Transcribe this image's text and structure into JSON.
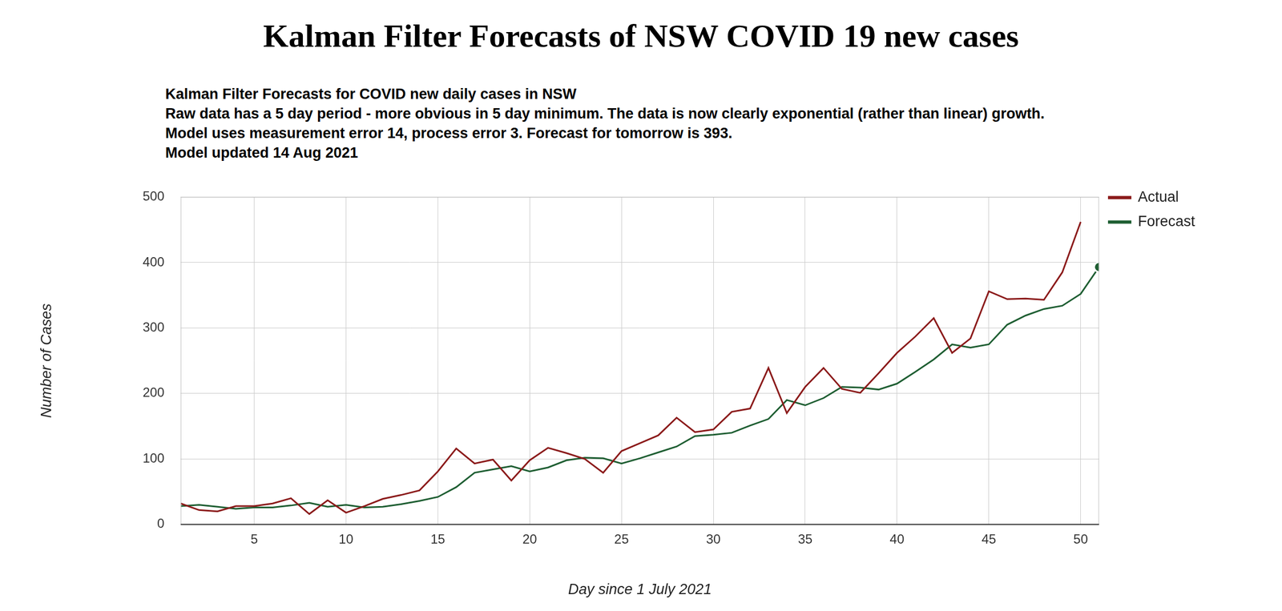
{
  "chart_data": {
    "type": "line",
    "title": "Kalman Filter Forecasts of NSW COVID 19 new cases",
    "subtitle": [
      "Kalman Filter Forecasts for COVID new daily cases in NSW",
      "Raw data has a 5 day period - more obvious in 5 day minimum. The data is now clearly exponential (rather than linear) growth.",
      "Model uses measurement error 14, process error 3. Forecast for tomorrow is 393.",
      "Model updated 14 Aug 2021"
    ],
    "x_label": "Day since 1 July 2021",
    "y_label": "Number of Cases",
    "x": [
      1,
      2,
      3,
      4,
      5,
      6,
      7,
      8,
      9,
      10,
      11,
      12,
      13,
      14,
      15,
      16,
      17,
      18,
      19,
      20,
      21,
      22,
      23,
      24,
      25,
      26,
      27,
      28,
      29,
      30,
      31,
      32,
      33,
      34,
      35,
      36,
      37,
      38,
      39,
      40,
      41,
      42,
      43,
      44,
      45,
      46,
      47,
      48,
      49,
      50,
      51
    ],
    "series": [
      {
        "name": "Actual",
        "color": "#8b1a1a",
        "values": [
          32,
          22,
          20,
          28,
          28,
          32,
          40,
          16,
          37,
          18,
          28,
          39,
          45,
          52,
          81,
          116,
          93,
          99,
          67,
          98,
          117,
          109,
          100,
          79,
          112,
          124,
          136,
          163,
          141,
          145,
          172,
          177,
          239,
          170,
          210,
          239,
          207,
          201,
          231,
          262,
          287,
          315,
          262,
          284,
          356,
          344,
          345,
          343,
          385,
          462,
          null
        ]
      },
      {
        "name": "Forecast",
        "color": "#1e5e32",
        "values": [
          28,
          30,
          27,
          24,
          26,
          26,
          29,
          33,
          27,
          30,
          26,
          27,
          31,
          36,
          42,
          57,
          79,
          84,
          89,
          81,
          87,
          98,
          102,
          101,
          93,
          101,
          110,
          119,
          135,
          137,
          140,
          151,
          161,
          190,
          182,
          193,
          210,
          209,
          206,
          215,
          233,
          252,
          275,
          270,
          275,
          305,
          319,
          329,
          334,
          352,
          393
        ]
      }
    ],
    "xlim": [
      1,
      51
    ],
    "xticks": [
      5,
      10,
      15,
      20,
      25,
      30,
      35,
      40,
      45,
      50
    ],
    "ylim": [
      0,
      500
    ],
    "yticks": [
      0,
      100,
      200,
      300,
      400,
      500
    ],
    "grid": true,
    "legend": "right"
  }
}
